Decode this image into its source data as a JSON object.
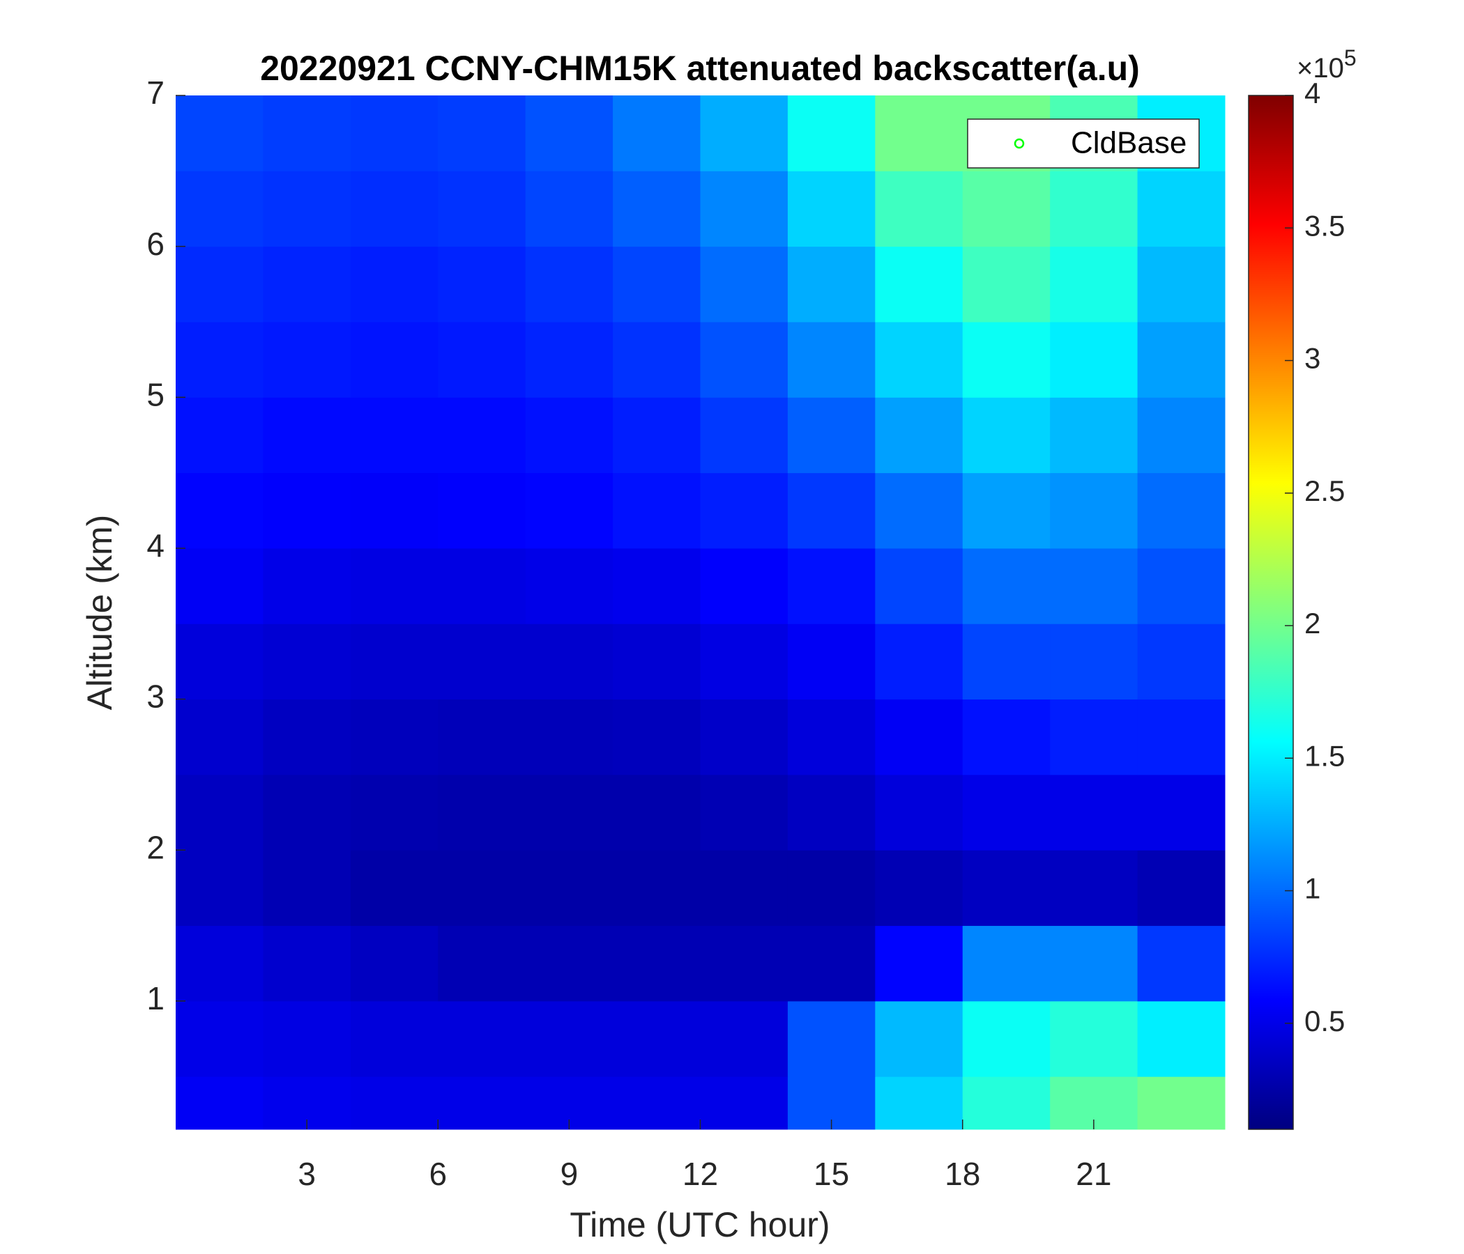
{
  "chart_data": {
    "type": "heatmap",
    "title": "20220921 CCNY-CHM15K attenuated backscatter(a.u)",
    "xlabel": "Time (UTC hour)",
    "ylabel": "Altitude (km)",
    "xlim": [
      0,
      24
    ],
    "xticks": [
      3,
      6,
      9,
      12,
      15,
      18,
      21
    ],
    "ylim": [
      0.15,
      7
    ],
    "yticks": [
      1,
      2,
      3,
      4,
      5,
      6,
      7
    ],
    "colormap": "jet",
    "x_edges": [
      0,
      2,
      4,
      6,
      8,
      10,
      12,
      14,
      16,
      18,
      20,
      22,
      24
    ],
    "y_edges": [
      0.15,
      0.5,
      1,
      1.5,
      2,
      2.5,
      3,
      3.5,
      4,
      4.5,
      5,
      5.5,
      6,
      6.5,
      7
    ],
    "values": [
      [
        55000,
        52000,
        50000,
        50000,
        50000,
        50000,
        50000,
        90000,
        140000,
        170000,
        190000,
        200000
      ],
      [
        50000,
        48000,
        45000,
        45000,
        45000,
        45000,
        45000,
        90000,
        130000,
        160000,
        170000,
        150000
      ],
      [
        45000,
        40000,
        35000,
        30000,
        30000,
        30000,
        30000,
        30000,
        60000,
        110000,
        110000,
        80000
      ],
      [
        35000,
        30000,
        25000,
        25000,
        25000,
        25000,
        25000,
        25000,
        30000,
        35000,
        35000,
        30000
      ],
      [
        35000,
        30000,
        28000,
        27000,
        27000,
        27000,
        30000,
        35000,
        45000,
        50000,
        50000,
        50000
      ],
      [
        40000,
        35000,
        33000,
        32000,
        32000,
        33000,
        38000,
        45000,
        55000,
        65000,
        70000,
        70000
      ],
      [
        45000,
        42000,
        40000,
        40000,
        40000,
        42000,
        48000,
        55000,
        70000,
        85000,
        85000,
        80000
      ],
      [
        55000,
        50000,
        48000,
        48000,
        50000,
        52000,
        58000,
        65000,
        85000,
        100000,
        100000,
        90000
      ],
      [
        60000,
        58000,
        57000,
        58000,
        60000,
        65000,
        70000,
        80000,
        100000,
        120000,
        115000,
        100000
      ],
      [
        65000,
        62000,
        62000,
        62000,
        65000,
        70000,
        80000,
        95000,
        120000,
        140000,
        130000,
        110000
      ],
      [
        70000,
        68000,
        66000,
        68000,
        72000,
        78000,
        90000,
        110000,
        140000,
        160000,
        150000,
        120000
      ],
      [
        75000,
        72000,
        70000,
        72000,
        78000,
        85000,
        100000,
        125000,
        160000,
        180000,
        165000,
        130000
      ],
      [
        80000,
        78000,
        76000,
        78000,
        85000,
        95000,
        110000,
        140000,
        180000,
        190000,
        175000,
        140000
      ],
      [
        85000,
        82000,
        80000,
        82000,
        90000,
        105000,
        125000,
        160000,
        200000,
        200000,
        185000,
        150000
      ]
    ],
    "clim": [
      10000,
      400000
    ],
    "cticks": [
      {
        "value": 50000,
        "label": "0.5"
      },
      {
        "value": 100000,
        "label": "1"
      },
      {
        "value": 150000,
        "label": "1.5"
      },
      {
        "value": 200000,
        "label": "2"
      },
      {
        "value": 250000,
        "label": "2.5"
      },
      {
        "value": 300000,
        "label": "3"
      },
      {
        "value": 350000,
        "label": "3.5"
      },
      {
        "value": 400000,
        "label": "4"
      }
    ],
    "colorbar_exponent": {
      "base": "×10",
      "power": "5"
    },
    "legend": {
      "label": "CldBase",
      "marker_color": "#00ff00",
      "loc": "upper right"
    }
  }
}
